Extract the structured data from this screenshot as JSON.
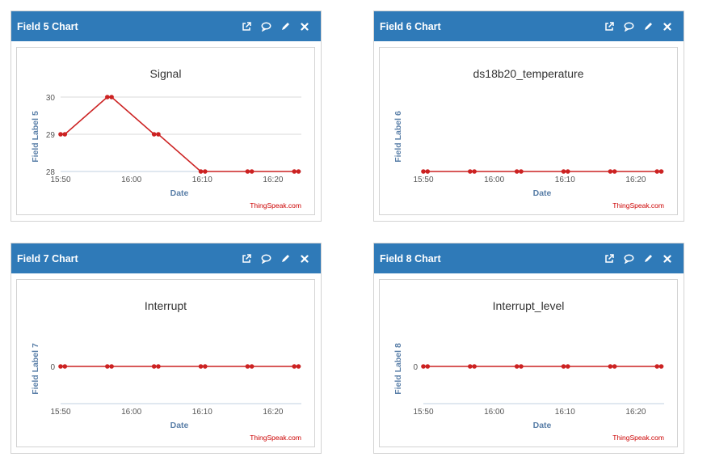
{
  "panels": [
    {
      "header": "Field 5 Chart",
      "chart_data": {
        "type": "line",
        "title": "Signal",
        "xlabel": "Date",
        "ylabel": "Field Label 5",
        "credit": "ThingSpeak.com",
        "x_ticks": [
          "15:50",
          "16:00",
          "16:10",
          "16:20"
        ],
        "x_tick_minutes": [
          0,
          10,
          20,
          30
        ],
        "x_range_minutes": [
          0,
          34
        ],
        "y_ticks": [
          28,
          29,
          30
        ],
        "ylim": [
          28,
          30
        ],
        "series": [
          {
            "color": "#cc2222",
            "points": [
              {
                "t": 0.0,
                "v": 29
              },
              {
                "t": 0.6,
                "v": 29
              },
              {
                "t": 6.6,
                "v": 30
              },
              {
                "t": 7.2,
                "v": 30
              },
              {
                "t": 13.2,
                "v": 29
              },
              {
                "t": 13.8,
                "v": 29
              },
              {
                "t": 19.8,
                "v": 28
              },
              {
                "t": 20.4,
                "v": 28
              },
              {
                "t": 26.4,
                "v": 28
              },
              {
                "t": 27.0,
                "v": 28
              },
              {
                "t": 33.0,
                "v": 28
              },
              {
                "t": 33.6,
                "v": 28
              }
            ]
          }
        ]
      }
    },
    {
      "header": "Field 6 Chart",
      "chart_data": {
        "type": "line",
        "title": "ds18b20_temperature",
        "xlabel": "Date",
        "ylabel": "Field Label 6",
        "credit": "ThingSpeak.com",
        "x_ticks": [
          "15:50",
          "16:00",
          "16:10",
          "16:20"
        ],
        "x_tick_minutes": [
          0,
          10,
          20,
          30
        ],
        "x_range_minutes": [
          0,
          34
        ],
        "y_ticks": [],
        "ylim": [
          0,
          1
        ],
        "series": [
          {
            "color": "#cc2222",
            "points": [
              {
                "t": 0.0,
                "v": 0
              },
              {
                "t": 0.6,
                "v": 0
              },
              {
                "t": 6.6,
                "v": 0
              },
              {
                "t": 7.2,
                "v": 0
              },
              {
                "t": 13.2,
                "v": 0
              },
              {
                "t": 13.8,
                "v": 0
              },
              {
                "t": 19.8,
                "v": 0
              },
              {
                "t": 20.4,
                "v": 0
              },
              {
                "t": 26.4,
                "v": 0
              },
              {
                "t": 27.0,
                "v": 0
              },
              {
                "t": 33.0,
                "v": 0
              },
              {
                "t": 33.6,
                "v": 0
              }
            ]
          }
        ]
      }
    },
    {
      "header": "Field 7 Chart",
      "chart_data": {
        "type": "line",
        "title": "Interrupt",
        "xlabel": "Date",
        "ylabel": "Field Label 7",
        "credit": "ThingSpeak.com",
        "x_ticks": [
          "15:50",
          "16:00",
          "16:10",
          "16:20"
        ],
        "x_tick_minutes": [
          0,
          10,
          20,
          30
        ],
        "x_range_minutes": [
          0,
          34
        ],
        "y_ticks": [
          0
        ],
        "ylim": [
          -1,
          1
        ],
        "series": [
          {
            "color": "#cc2222",
            "points": [
              {
                "t": 0.0,
                "v": 0
              },
              {
                "t": 0.6,
                "v": 0
              },
              {
                "t": 6.6,
                "v": 0
              },
              {
                "t": 7.2,
                "v": 0
              },
              {
                "t": 13.2,
                "v": 0
              },
              {
                "t": 13.8,
                "v": 0
              },
              {
                "t": 19.8,
                "v": 0
              },
              {
                "t": 20.4,
                "v": 0
              },
              {
                "t": 26.4,
                "v": 0
              },
              {
                "t": 27.0,
                "v": 0
              },
              {
                "t": 33.0,
                "v": 0
              },
              {
                "t": 33.6,
                "v": 0
              }
            ]
          }
        ]
      }
    },
    {
      "header": "Field 8 Chart",
      "chart_data": {
        "type": "line",
        "title": "Interrupt_level",
        "xlabel": "Date",
        "ylabel": "Field Label 8",
        "credit": "ThingSpeak.com",
        "x_ticks": [
          "15:50",
          "16:00",
          "16:10",
          "16:20"
        ],
        "x_tick_minutes": [
          0,
          10,
          20,
          30
        ],
        "x_range_minutes": [
          0,
          34
        ],
        "y_ticks": [
          0
        ],
        "ylim": [
          -1,
          1
        ],
        "series": [
          {
            "color": "#cc2222",
            "points": [
              {
                "t": 0.0,
                "v": 0
              },
              {
                "t": 0.6,
                "v": 0
              },
              {
                "t": 6.6,
                "v": 0
              },
              {
                "t": 7.2,
                "v": 0
              },
              {
                "t": 13.2,
                "v": 0
              },
              {
                "t": 13.8,
                "v": 0
              },
              {
                "t": 19.8,
                "v": 0
              },
              {
                "t": 20.4,
                "v": 0
              },
              {
                "t": 26.4,
                "v": 0
              },
              {
                "t": 27.0,
                "v": 0
              },
              {
                "t": 33.0,
                "v": 0
              },
              {
                "t": 33.6,
                "v": 0
              }
            ]
          }
        ]
      }
    }
  ],
  "header_icons": [
    "external-link-icon",
    "comment-icon",
    "pencil-icon",
    "close-icon"
  ],
  "colors": {
    "header_bg": "#2f7ab8",
    "series": "#cc2222",
    "axis_label": "#5a7fa8",
    "credit": "#cc0000"
  }
}
